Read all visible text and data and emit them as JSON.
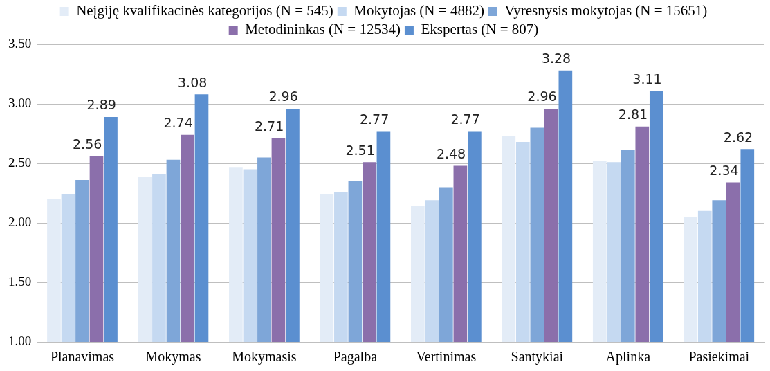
{
  "chart_data": {
    "type": "bar",
    "categories": [
      "Planavimas",
      "Mokymas",
      "Mokymasis",
      "Pagalba",
      "Vertinimas",
      "Santykiai",
      "Aplinka",
      "Pasiekimai"
    ],
    "series": [
      {
        "name": "Neįgiję kvalifikacinės kategorijos (N = 545)",
        "color": "#e3ecf7",
        "values": [
          2.2,
          2.39,
          2.47,
          2.24,
          2.14,
          2.73,
          2.52,
          2.05
        ]
      },
      {
        "name": "Mokytojas (N = 4882)",
        "color": "#c5d9f1",
        "values": [
          2.24,
          2.41,
          2.45,
          2.26,
          2.19,
          2.68,
          2.51,
          2.1
        ]
      },
      {
        "name": "Vyresnysis mokytojas (N = 15651)",
        "color": "#7ea6d8",
        "values": [
          2.36,
          2.53,
          2.55,
          2.35,
          2.3,
          2.8,
          2.61,
          2.19
        ]
      },
      {
        "name": "Metodininkas (N = 12534)",
        "color": "#8b6fab",
        "values": [
          2.56,
          2.74,
          2.71,
          2.51,
          2.48,
          2.96,
          2.81,
          2.34
        ],
        "value_labels": [
          "2.56",
          "2.74",
          "2.71",
          "2.51",
          "2.48",
          "2.96",
          "2.81",
          "2.34"
        ]
      },
      {
        "name": "Ekspertas (N = 807)",
        "color": "#5b8fd0",
        "values": [
          2.89,
          3.08,
          2.96,
          2.77,
          2.77,
          3.28,
          3.11,
          2.62
        ],
        "value_labels": [
          "2.89",
          "3.08",
          "2.96",
          "2.77",
          "2.77",
          "3.28",
          "3.11",
          "2.62"
        ]
      }
    ],
    "ylim": [
      1,
      3.5
    ],
    "yticks": [
      {
        "value": 1,
        "label": "1.00"
      },
      {
        "value": 1.5,
        "label": "1.50"
      },
      {
        "value": 2,
        "label": "2.00"
      },
      {
        "value": 2.5,
        "label": "2.50"
      },
      {
        "value": 3,
        "label": "3.00"
      },
      {
        "value": 3.5,
        "label": "3.50"
      }
    ],
    "grid": "y",
    "legend": "top"
  }
}
